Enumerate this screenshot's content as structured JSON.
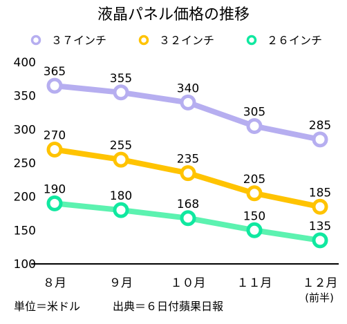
{
  "chart_data": {
    "type": "line",
    "title": "液晶パネル価格の推移",
    "categories": [
      "８月",
      "９月",
      "１０月",
      "１１月",
      "１２月"
    ],
    "category_note": "(前半)",
    "series": [
      {
        "name": "３７インチ",
        "values": [
          365,
          355,
          340,
          305,
          285
        ],
        "color": "#b6aef0",
        "marker_color": "#b6aef0"
      },
      {
        "name": "３２インチ",
        "values": [
          270,
          255,
          235,
          205,
          185
        ],
        "color": "#ffc300",
        "marker_color": "#ffc300"
      },
      {
        "name": "２６インチ",
        "values": [
          190,
          180,
          168,
          150,
          135
        ],
        "color": "#5cf2b0",
        "marker_color": "#10e8a0"
      }
    ],
    "ylim": [
      100,
      400
    ],
    "yticks": [
      400,
      350,
      300,
      250,
      200,
      150,
      100
    ],
    "grid": false,
    "legend": "top",
    "footnotes": {
      "unit": "単位＝米ドル",
      "source": "出典＝６日付蘋果日報"
    }
  }
}
